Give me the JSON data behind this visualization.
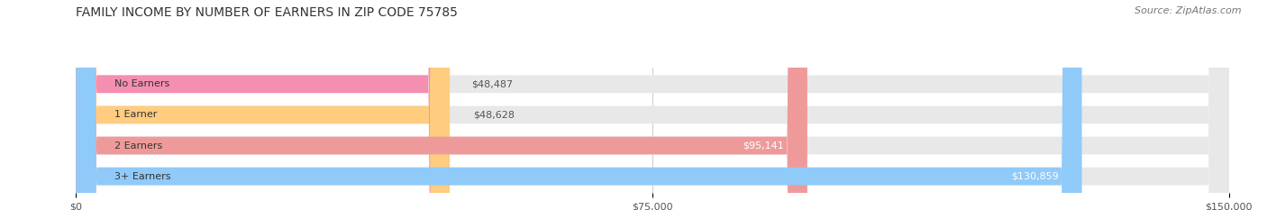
{
  "title": "FAMILY INCOME BY NUMBER OF EARNERS IN ZIP CODE 75785",
  "source": "Source: ZipAtlas.com",
  "categories": [
    "No Earners",
    "1 Earner",
    "2 Earners",
    "3+ Earners"
  ],
  "values": [
    48487,
    48628,
    95141,
    130859
  ],
  "bar_colors": [
    "#f48fb1",
    "#ffcc80",
    "#ef9a9a",
    "#90caf9"
  ],
  "bar_bg_color": "#e8e8e8",
  "xlim": [
    0,
    150000
  ],
  "xticks": [
    0,
    75000,
    150000
  ],
  "xtick_labels": [
    "$0",
    "$75,000",
    "$150,000"
  ],
  "background_color": "#ffffff",
  "fig_width": 14.06,
  "fig_height": 2.33,
  "bar_height": 0.58,
  "title_fontsize": 10,
  "source_fontsize": 8,
  "label_fontsize": 8,
  "tick_fontsize": 8,
  "category_fontsize": 8
}
